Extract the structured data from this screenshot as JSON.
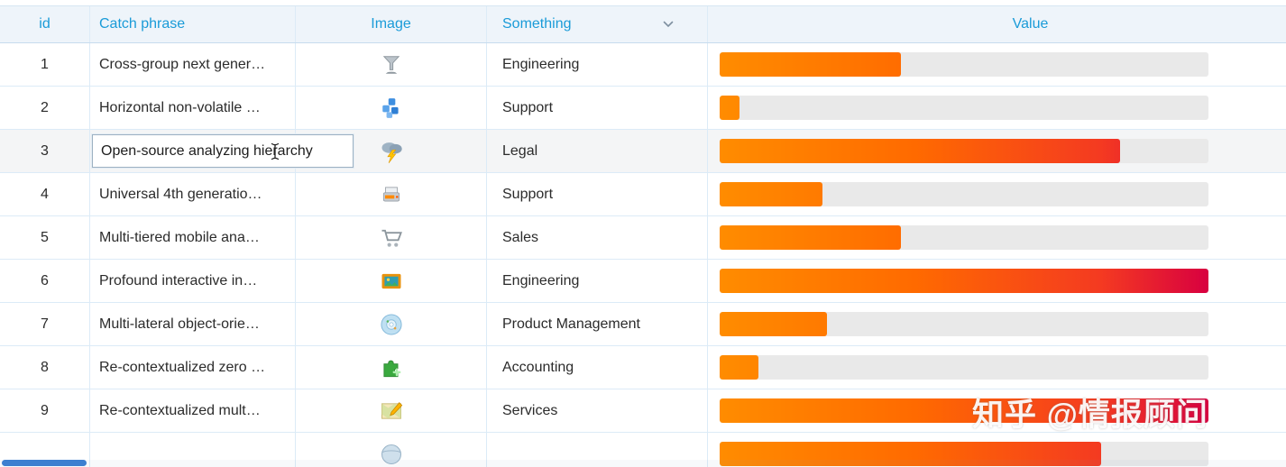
{
  "header": {
    "columns": [
      {
        "key": "id",
        "label": "id"
      },
      {
        "key": "catch_phrase",
        "label": "Catch phrase"
      },
      {
        "key": "image",
        "label": "Image"
      },
      {
        "key": "something",
        "label": "Something",
        "has_menu": true
      },
      {
        "key": "value",
        "label": "Value"
      }
    ]
  },
  "colors": {
    "header_text": "#1a9bd8",
    "header_bg": "#eef4fa",
    "row_border": "#dcebf7",
    "bar_track": "#e9e9e9",
    "bar_gradient_start": "#ff8c00",
    "bar_gradient_end": "#d80040",
    "scroll_thumb": "#3c7fd0"
  },
  "editor": {
    "row_id": "3",
    "value": "Open-source analyzing hierarchy"
  },
  "watermark": "知乎 @情报顾问",
  "rows": [
    {
      "id": "1",
      "catch_phrase": "Cross-group next gener…",
      "icon": "funnel",
      "something": "Engineering",
      "value_pct": 37
    },
    {
      "id": "2",
      "catch_phrase": "Horizontal non-volatile …",
      "icon": "blue-blocks",
      "something": "Support",
      "value_pct": 4
    },
    {
      "id": "3",
      "catch_phrase": "Open-source analyzing hierarchy",
      "icon": "storm-cloud",
      "something": "Legal",
      "value_pct": 82,
      "editing": true,
      "highlight": true
    },
    {
      "id": "4",
      "catch_phrase": "Universal 4th generatio…",
      "icon": "cash-register",
      "something": "Support",
      "value_pct": 21
    },
    {
      "id": "5",
      "catch_phrase": "Multi-tiered mobile ana…",
      "icon": "shopping-cart",
      "something": "Sales",
      "value_pct": 37
    },
    {
      "id": "6",
      "catch_phrase": "Profound interactive in…",
      "icon": "framed-picture",
      "something": "Engineering",
      "value_pct": 100
    },
    {
      "id": "7",
      "catch_phrase": "Multi-lateral object-orie…",
      "icon": "cd-disc",
      "something": "Product Management",
      "value_pct": 22
    },
    {
      "id": "8",
      "catch_phrase": "Re-contextualized zero …",
      "icon": "green-puzzle",
      "something": "Accounting",
      "value_pct": 8
    },
    {
      "id": "9",
      "catch_phrase": "Re-contextualized mult…",
      "icon": "map-pencil",
      "something": "Services",
      "value_pct": 100
    },
    {
      "id": "",
      "catch_phrase": "",
      "icon": "globe",
      "something": "",
      "value_pct": 78
    }
  ]
}
